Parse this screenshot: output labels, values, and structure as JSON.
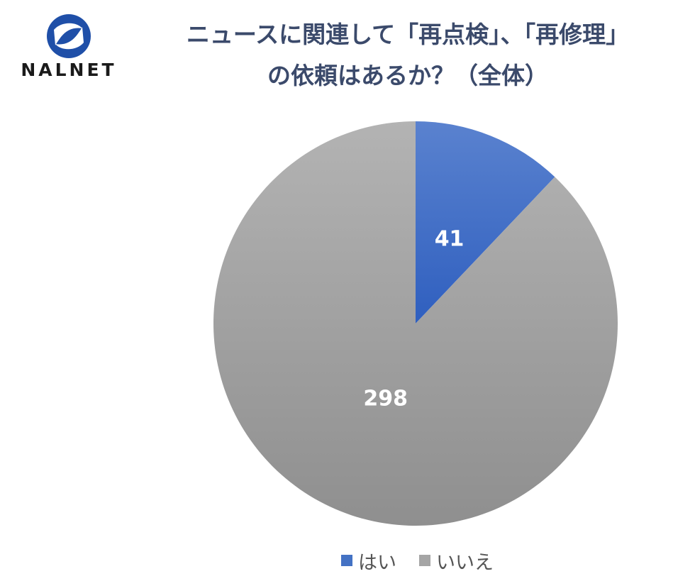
{
  "logo": {
    "text": "NALNET",
    "accent": "#1f4fa8"
  },
  "title": {
    "line1": "ニュースに関連して「再点検」、「再修理」",
    "line2": "の依頼はあるか？（全体）",
    "color": "#3b4a6b"
  },
  "chart_data": {
    "type": "pie",
    "title": "ニュースに関連して「再点検」、「再修理」の依頼はあるか？（全体）",
    "categories": [
      "はい",
      "いいえ"
    ],
    "values": [
      41,
      298
    ],
    "data_labels": [
      "41",
      "298"
    ],
    "colors": [
      "#4472c4",
      "#a5a5a5"
    ],
    "start_angle": "12 o'clock",
    "direction": "clockwise",
    "legend": "bottom"
  }
}
